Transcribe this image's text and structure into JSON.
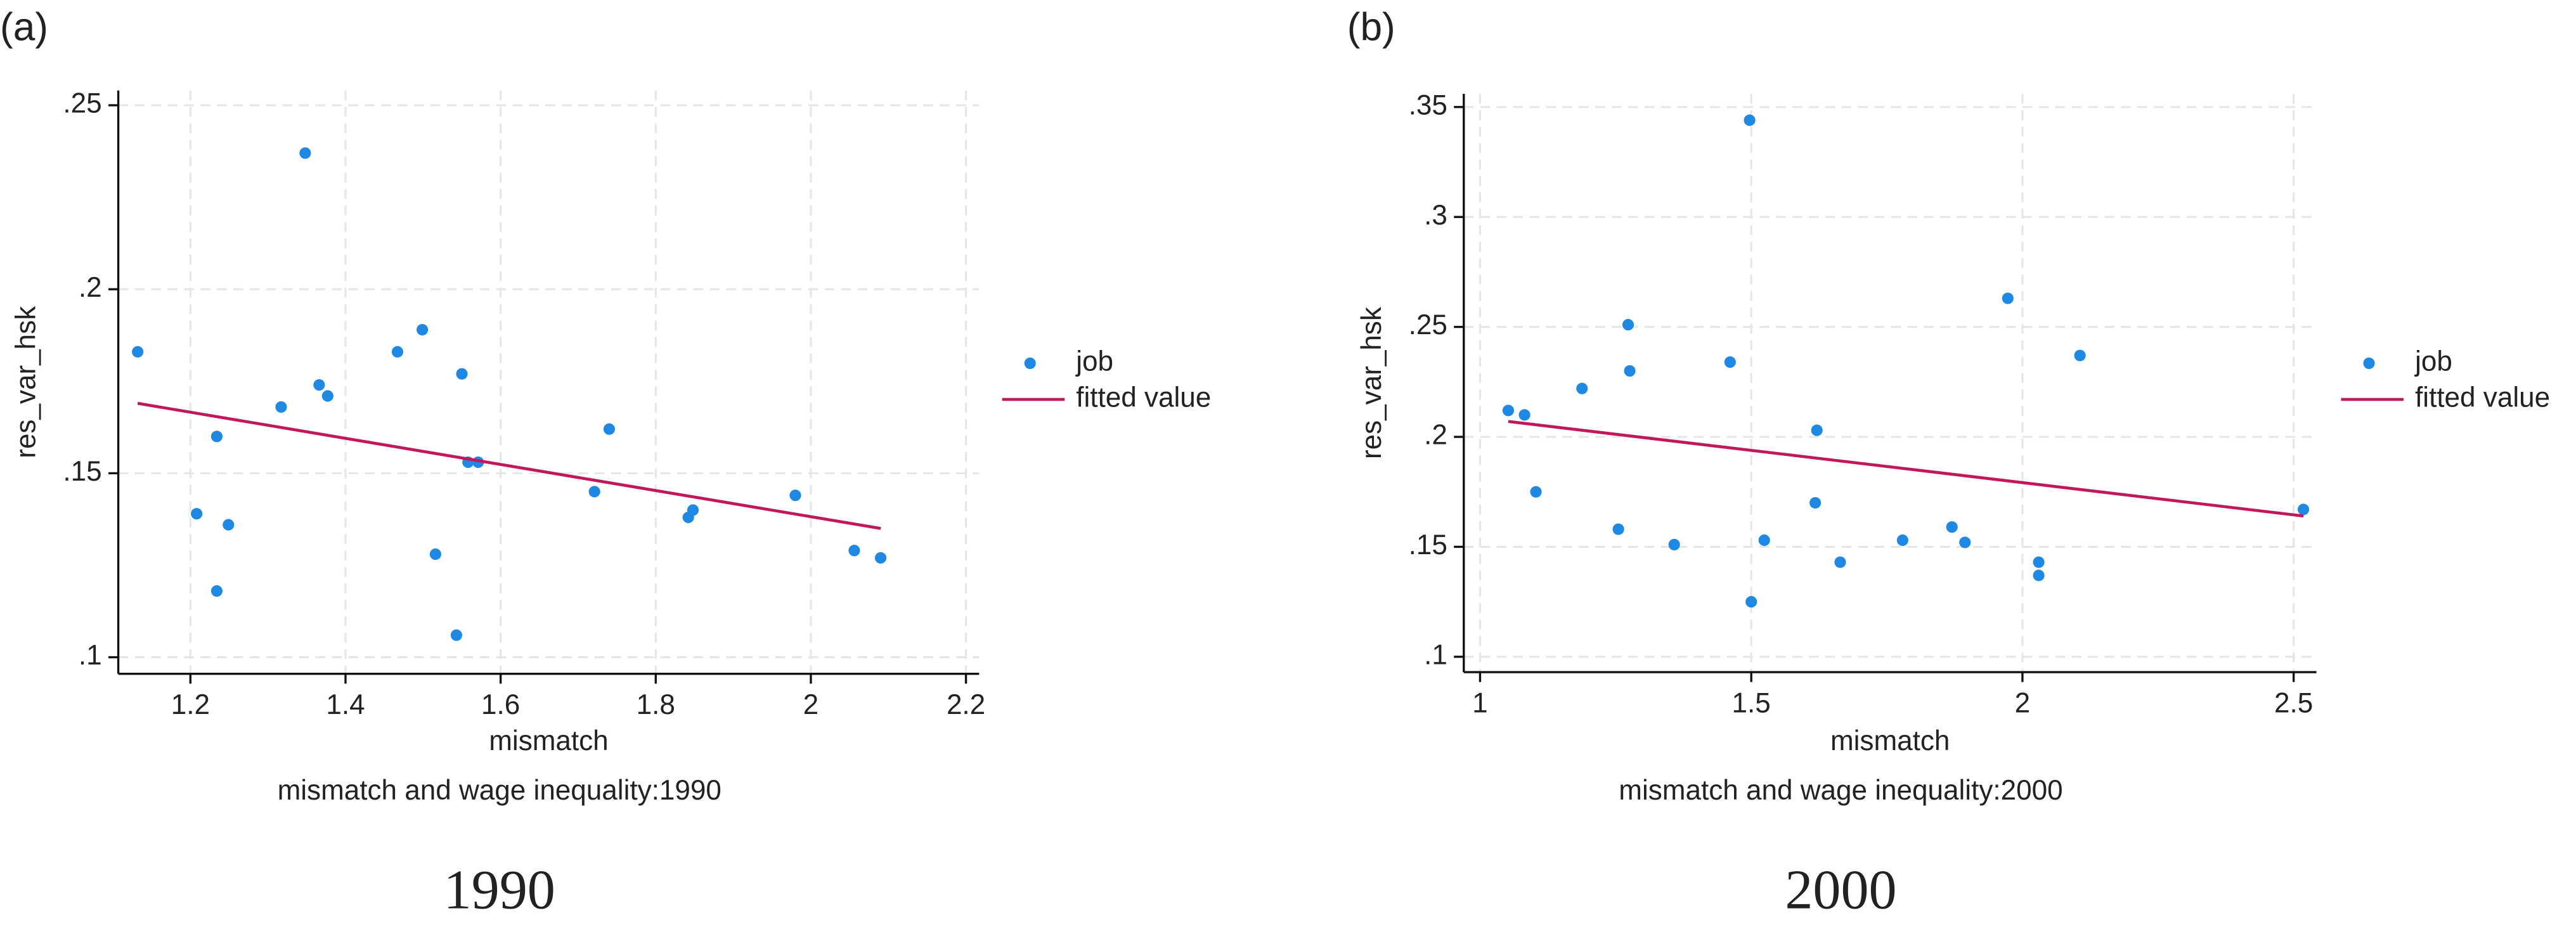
{
  "chart_data": [
    {
      "type": "scatter",
      "panel_label": "(a)",
      "xlabel": "mismatch",
      "ylabel": "res_var_hsk",
      "caption": "mismatch and wage inequality:1990",
      "footer": "1990",
      "grid": true,
      "legend": "right",
      "xlim": [
        1.107,
        2.217
      ],
      "ylim": [
        0.0955,
        0.254
      ],
      "xticks": [
        1.2,
        1.4,
        1.6,
        1.8,
        2,
        2.2
      ],
      "yticks": [
        {
          "value": 0.1,
          "label": ".1"
        },
        {
          "value": 0.15,
          "label": ".15"
        },
        {
          "value": 0.2,
          "label": ".2"
        },
        {
          "value": 0.25,
          "label": ".25"
        }
      ],
      "series": [
        {
          "name": "job",
          "kind": "scatter",
          "color": "#1e88e5",
          "x": [
            1.132,
            1.348,
            1.234,
            1.208,
            1.249,
            1.234,
            1.317,
            1.366,
            1.377,
            1.467,
            1.499,
            1.55,
            1.558,
            1.571,
            1.516,
            1.543,
            1.74,
            1.721,
            1.842,
            1.848,
            1.98,
            2.056,
            2.09
          ],
          "values": [
            0.183,
            0.237,
            0.16,
            0.139,
            0.136,
            0.118,
            0.168,
            0.174,
            0.171,
            0.183,
            0.189,
            0.177,
            0.153,
            0.153,
            0.128,
            0.106,
            0.162,
            0.145,
            0.138,
            0.14,
            0.144,
            0.129,
            0.127
          ]
        },
        {
          "name": "fitted value",
          "kind": "line",
          "color": "#c2185b",
          "x": [
            1.132,
            2.09
          ],
          "values": [
            0.169,
            0.135
          ]
        }
      ]
    },
    {
      "type": "scatter",
      "panel_label": "(b)",
      "xlabel": "mismatch",
      "ylabel": "res_var_hsk",
      "caption": "mismatch and wage inequality:2000",
      "footer": "2000",
      "grid": true,
      "legend": "right",
      "xlim": [
        0.97,
        2.542
      ],
      "ylim": [
        0.093,
        0.356
      ],
      "xticks": [
        1,
        1.5,
        2,
        2.5
      ],
      "yticks": [
        {
          "value": 0.1,
          "label": ".1"
        },
        {
          "value": 0.15,
          "label": ".15"
        },
        {
          "value": 0.2,
          "label": ".2"
        },
        {
          "value": 0.25,
          "label": ".25"
        },
        {
          "value": 0.3,
          "label": ".3"
        },
        {
          "value": 0.35,
          "label": ".35"
        }
      ],
      "series": [
        {
          "name": "job",
          "kind": "scatter",
          "color": "#1e88e5",
          "x": [
            1.497,
            1.052,
            1.082,
            1.103,
            1.188,
            1.273,
            1.276,
            1.255,
            1.358,
            1.461,
            1.5,
            1.524,
            1.621,
            1.618,
            1.664,
            1.779,
            1.87,
            1.894,
            1.973,
            2.03,
            2.03,
            2.106,
            2.518
          ],
          "values": [
            0.344,
            0.212,
            0.21,
            0.175,
            0.222,
            0.251,
            0.23,
            0.158,
            0.151,
            0.234,
            0.125,
            0.153,
            0.203,
            0.17,
            0.143,
            0.153,
            0.159,
            0.152,
            0.263,
            0.143,
            0.137,
            0.237,
            0.167
          ]
        },
        {
          "name": "fitted value",
          "kind": "line",
          "color": "#c2185b",
          "x": [
            1.052,
            2.518
          ],
          "values": [
            0.207,
            0.164
          ]
        }
      ]
    }
  ]
}
